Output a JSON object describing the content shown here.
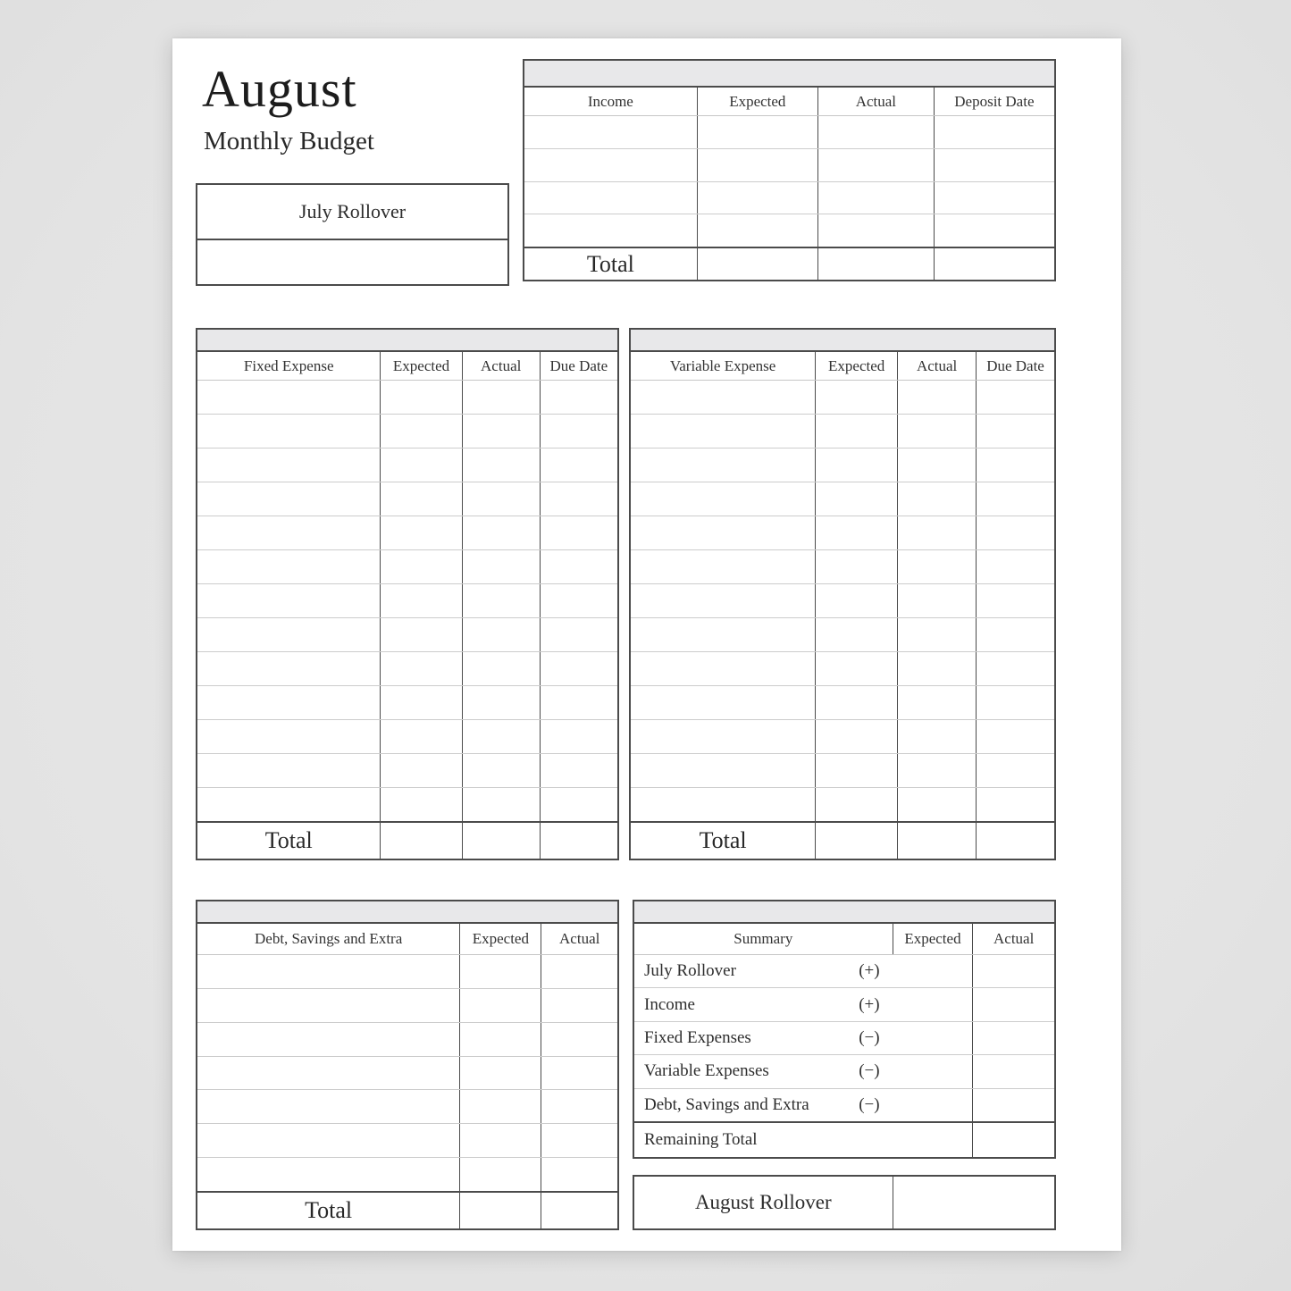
{
  "header": {
    "title": "August",
    "subtitle": "Monthly Budget"
  },
  "july_rollover": {
    "label": "July Rollover"
  },
  "income_table": {
    "columns": [
      "Income",
      "Expected",
      "Actual",
      "Deposit Date"
    ],
    "empty_rows": 4,
    "total_label": "Total"
  },
  "fixed_table": {
    "columns": [
      "Fixed Expense",
      "Expected",
      "Actual",
      "Due Date"
    ],
    "empty_rows": 13,
    "total_label": "Total"
  },
  "variable_table": {
    "columns": [
      "Variable Expense",
      "Expected",
      "Actual",
      "Due Date"
    ],
    "empty_rows": 13,
    "total_label": "Total"
  },
  "debt_table": {
    "columns": [
      "Debt, Savings and Extra",
      "Expected",
      "Actual"
    ],
    "empty_rows": 7,
    "total_label": "Total"
  },
  "summary_table": {
    "title": "Summary",
    "columns": [
      "Expected",
      "Actual"
    ],
    "rows": [
      {
        "label": "July Rollover",
        "sign": "(+)"
      },
      {
        "label": "Income",
        "sign": "(+)"
      },
      {
        "label": "Fixed Expenses",
        "sign": "(−)"
      },
      {
        "label": "Variable Expenses",
        "sign": "(−)"
      },
      {
        "label": "Debt, Savings and Extra",
        "sign": "(−)"
      }
    ],
    "remaining_label": "Remaining Total"
  },
  "august_rollover": {
    "label": "August Rollover"
  },
  "colors": {
    "page_background": "#ffffff",
    "canvas_background": "#e4e4e4",
    "header_band_fill": "#e8e8ea",
    "dark_line": "#4b4b4b",
    "light_line": "#cccccc",
    "text": "#2d2d2d"
  }
}
